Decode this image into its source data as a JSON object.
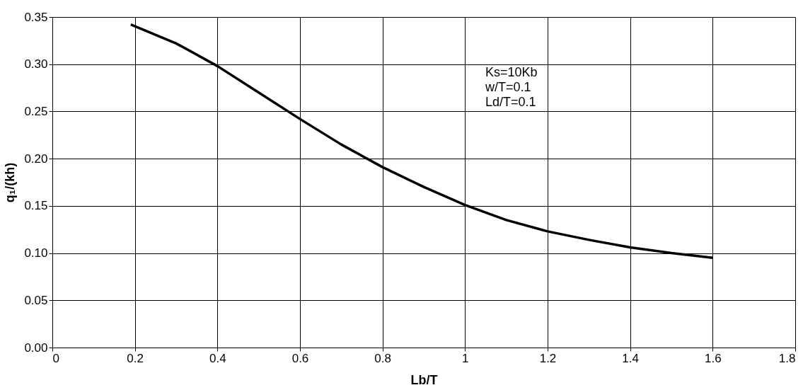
{
  "chart_data": {
    "type": "line",
    "xlabel": "Lb/T",
    "ylabel": "q₁/(kh)",
    "x": [
      0.19,
      0.3,
      0.4,
      0.5,
      0.6,
      0.7,
      0.8,
      0.9,
      1.0,
      1.1,
      1.2,
      1.3,
      1.4,
      1.5,
      1.6
    ],
    "series": [
      {
        "color": "#000000",
        "values": [
          0.342,
          0.322,
          0.298,
          0.27,
          0.242,
          0.215,
          0.191,
          0.17,
          0.151,
          0.135,
          0.123,
          0.114,
          0.106,
          0.1,
          0.095
        ]
      }
    ],
    "xlim": [
      0,
      1.8
    ],
    "ylim": [
      0,
      0.35
    ],
    "xticks": [
      0,
      0.2,
      0.4,
      0.6,
      0.8,
      1,
      1.2,
      1.4,
      1.6,
      1.8
    ],
    "yticks": [
      {
        "value": 0,
        "label": "0.00"
      },
      {
        "value": 0.05,
        "label": "0.05"
      },
      {
        "value": 0.1,
        "label": "0.10"
      },
      {
        "value": 0.15,
        "label": "0.15"
      },
      {
        "value": 0.2,
        "label": "0.20"
      },
      {
        "value": 0.25,
        "label": "0.25"
      },
      {
        "value": 0.3,
        "label": "0.30"
      },
      {
        "value": 0.35,
        "label": "0.35"
      }
    ],
    "annotations": [
      "Ks=10Kb",
      "w/T=0.1",
      "Ld/T=0.1"
    ],
    "grid": true,
    "marker": "none",
    "line_style": "solid"
  }
}
